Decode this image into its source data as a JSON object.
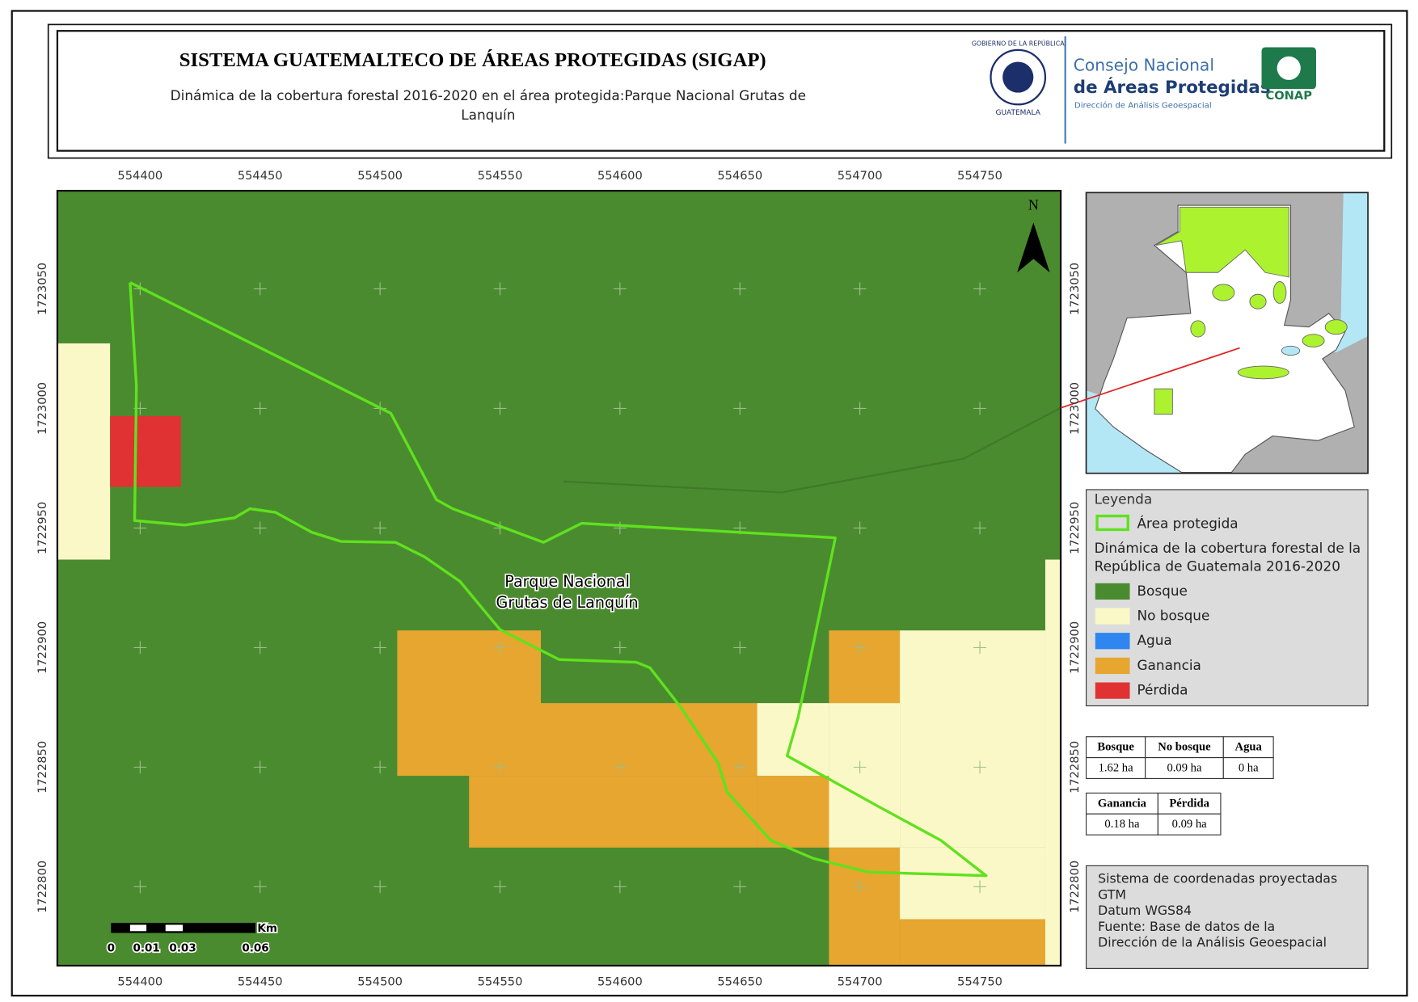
{
  "header": {
    "title": "SISTEMA GUATEMALTECO DE ÁREAS PROTEGIDAS  (SIGAP)",
    "subtitle": [
      "Dinámica de la cobertura forestal 2016-2020 en el área protegida:Parque Nacional Grutas de",
      "Lanquín"
    ]
  },
  "logos": {
    "seal_top": "GOBIERNO DE LA REPÚBLICA",
    "seal_bottom": "GUATEMALA",
    "conap_line1": "Consejo Nacional",
    "conap_line2": "de Áreas Protegidas",
    "conap_line3": "Dirección de Análisis Geoespacial",
    "conap_badge": "CONAP"
  },
  "map": {
    "xlim": [
      554365.5,
      554783.7
    ],
    "ylim": [
      1722767,
      1723091
    ],
    "xticks": [
      554400,
      554450,
      554500,
      554550,
      554600,
      554650,
      554700,
      554750
    ],
    "yticks": [
      1722800,
      1722850,
      1722900,
      1722950,
      1723000,
      1723050
    ],
    "north": "N",
    "label": [
      "Parque Nacional",
      "Grutas de Lanquín"
    ],
    "scale_bar": {
      "unit": "Km",
      "labels": [
        "0",
        "0.01",
        "0.03",
        "0.06"
      ]
    }
  },
  "legend": {
    "title": "Leyenda",
    "boundary": {
      "label": "Área protegida",
      "color": "#5fe21e"
    },
    "subtitle": [
      "Dinámica de la cobertura forestal de la",
      "República de Guatemala 2016-2020"
    ],
    "items": [
      {
        "label": "Bosque",
        "color": "#4b8b2f"
      },
      {
        "label": "No bosque",
        "color": "#fbf8c8"
      },
      {
        "label": "Agua",
        "color": "#2f86f0"
      },
      {
        "label": "Ganancia",
        "color": "#e6a630"
      },
      {
        "label": "Pérdida",
        "color": "#e03232"
      }
    ]
  },
  "area_table_1": {
    "header": [
      "Bosque",
      "No bosque",
      "Agua"
    ],
    "row": [
      "1.62 ha",
      "0.09 ha",
      "0 ha"
    ]
  },
  "area_table_2": {
    "header": [
      "Ganancia",
      "Pérdida"
    ],
    "row": [
      "0.18 ha",
      "0.09 ha"
    ]
  },
  "info": [
    "Sistema de coordenadas proyectadas",
    "GTM",
    "Datum WGS84",
    "Fuente: Base de datos de la",
    "Dirección de la Análisis Geoespacial"
  ]
}
